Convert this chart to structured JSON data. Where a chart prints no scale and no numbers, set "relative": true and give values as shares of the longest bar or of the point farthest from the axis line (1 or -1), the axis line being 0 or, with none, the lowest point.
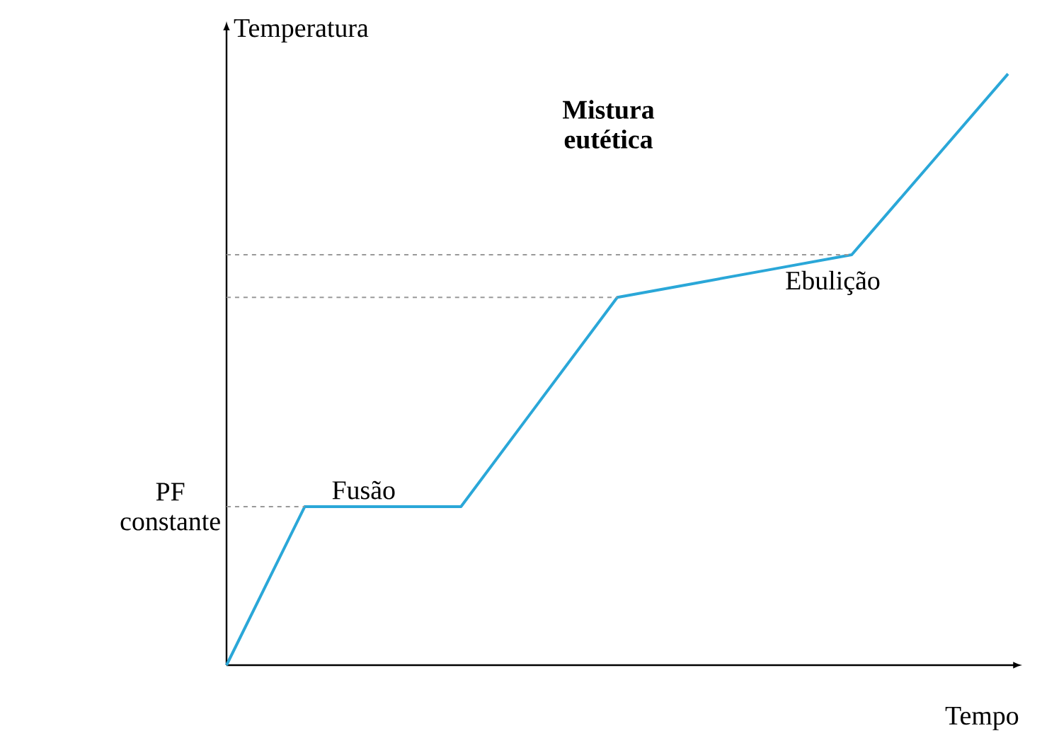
{
  "chart_data": {
    "type": "line",
    "relative": true,
    "xlabel": "Tempo",
    "ylabel": "Temperatura",
    "categories": [
      null,
      null,
      null,
      null,
      null,
      null,
      null,
      null,
      null,
      null,
      null
    ],
    "series": [
      {
        "color": "#2aa7d8",
        "values": [
          0,
          0.268,
          0.268,
          0.268,
          0.445,
          0.622,
          0.646,
          0.67,
          0.694,
          0.847,
          1
        ]
      }
    ],
    "ref_lines": [
      {
        "axis": "y",
        "value": 0.268,
        "label": "PF constante",
        "color": "#999999",
        "line_style": "dashed"
      },
      {
        "axis": "y",
        "value": 0.622,
        "color": "#999999",
        "line_style": "dashed"
      },
      {
        "axis": "y",
        "value": 0.694,
        "color": "#999999",
        "line_style": "dashed"
      }
    ],
    "annotations": [
      "**Mistura eutética**",
      "Fusão",
      "Ebulição"
    ]
  }
}
